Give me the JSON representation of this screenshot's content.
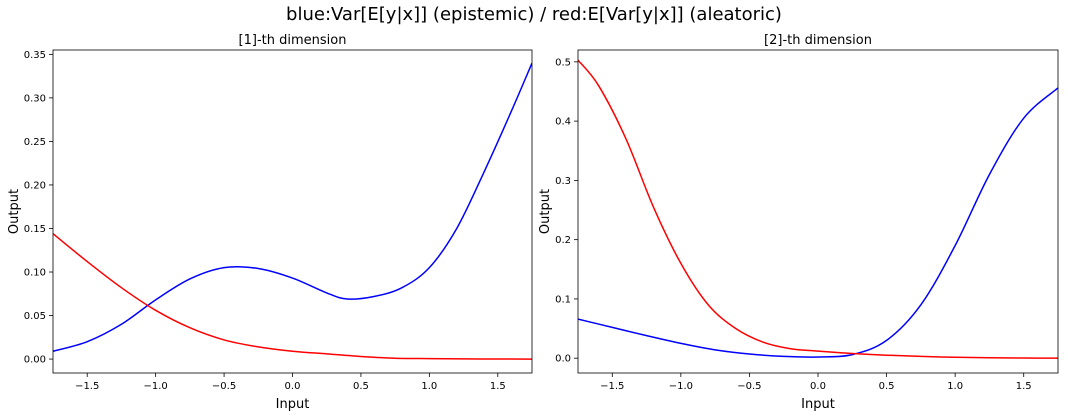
{
  "suptitle": "blue:Var[E[y|x]] (epistemic) / red:E[Var[y|x]] (aleatoric)",
  "colors": {
    "epistemic": "#0000ff",
    "aleatoric": "#ff0000",
    "axes": "#000000"
  },
  "chart_data": [
    {
      "type": "line",
      "title": "[1]-th dimension",
      "xlabel": "Input",
      "ylabel": "Output",
      "xlim": [
        -1.75,
        1.75
      ],
      "ylim": [
        -0.016,
        0.355
      ],
      "xticks": [
        -1.5,
        -1.0,
        -0.5,
        0.0,
        0.5,
        1.0,
        1.5
      ],
      "xtick_labels": [
        "−1.5",
        "−1.0",
        "−0.5",
        "0.0",
        "0.5",
        "1.0",
        "1.5"
      ],
      "yticks": [
        0.0,
        0.05,
        0.1,
        0.15,
        0.2,
        0.25,
        0.3,
        0.35
      ],
      "ytick_labels": [
        "0.00",
        "0.05",
        "0.10",
        "0.15",
        "0.20",
        "0.25",
        "0.30",
        "0.35"
      ],
      "grid": false,
      "series": [
        {
          "color": "blue",
          "x": [
            -1.75,
            -1.5,
            -1.25,
            -1.0,
            -0.75,
            -0.5,
            -0.25,
            0.0,
            0.25,
            0.4,
            0.6,
            0.8,
            1.0,
            1.2,
            1.4,
            1.6,
            1.75
          ],
          "y": [
            0.009,
            0.02,
            0.04,
            0.068,
            0.092,
            0.105,
            0.104,
            0.093,
            0.076,
            0.069,
            0.072,
            0.082,
            0.105,
            0.15,
            0.215,
            0.285,
            0.34
          ]
        },
        {
          "color": "red",
          "x": [
            -1.75,
            -1.5,
            -1.25,
            -1.0,
            -0.75,
            -0.5,
            -0.25,
            0.0,
            0.25,
            0.5,
            0.75,
            1.0,
            1.25,
            1.5,
            1.75
          ],
          "y": [
            0.144,
            0.112,
            0.082,
            0.056,
            0.036,
            0.022,
            0.014,
            0.009,
            0.006,
            0.003,
            0.001,
            0.0005,
            0.0002,
            0.0001,
            0.0
          ]
        }
      ]
    },
    {
      "type": "line",
      "title": "[2]-th dimension",
      "xlabel": "Input",
      "ylabel": "Output",
      "xlim": [
        -1.75,
        1.75
      ],
      "ylim": [
        -0.025,
        0.52
      ],
      "xticks": [
        -1.5,
        -1.0,
        -0.5,
        0.0,
        0.5,
        1.0,
        1.5
      ],
      "xtick_labels": [
        "−1.5",
        "−1.0",
        "−0.5",
        "0.0",
        "0.5",
        "1.0",
        "1.5"
      ],
      "yticks": [
        0.0,
        0.1,
        0.2,
        0.3,
        0.4,
        0.5
      ],
      "ytick_labels": [
        "0.0",
        "0.1",
        "0.2",
        "0.3",
        "0.4",
        "0.5"
      ],
      "grid": false,
      "series": [
        {
          "color": "blue",
          "x": [
            -1.75,
            -1.5,
            -1.25,
            -1.0,
            -0.75,
            -0.5,
            -0.25,
            0.0,
            0.25,
            0.5,
            0.75,
            1.0,
            1.25,
            1.5,
            1.75
          ],
          "y": [
            0.066,
            0.052,
            0.038,
            0.025,
            0.014,
            0.007,
            0.003,
            0.002,
            0.006,
            0.03,
            0.09,
            0.19,
            0.31,
            0.405,
            0.456
          ]
        },
        {
          "color": "red",
          "x": [
            -1.75,
            -1.6,
            -1.4,
            -1.2,
            -1.0,
            -0.8,
            -0.6,
            -0.4,
            -0.2,
            0.0,
            0.25,
            0.5,
            0.75,
            1.0,
            1.25,
            1.5,
            1.75
          ],
          "y": [
            0.503,
            0.46,
            0.37,
            0.255,
            0.16,
            0.09,
            0.05,
            0.027,
            0.016,
            0.012,
            0.008,
            0.005,
            0.003,
            0.0015,
            0.0007,
            0.0003,
            0.0
          ]
        }
      ]
    }
  ]
}
